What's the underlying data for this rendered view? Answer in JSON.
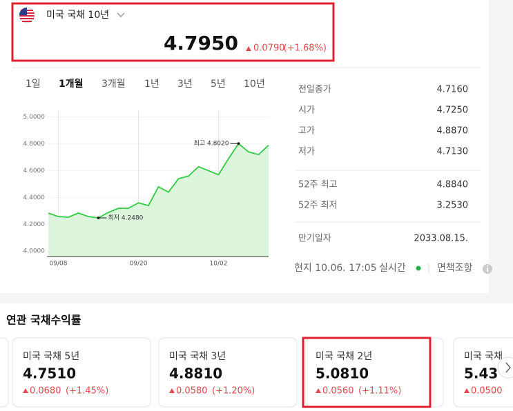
{
  "header": {
    "title": "미국 국채 10년",
    "price": "4.7950",
    "change": "0.0790",
    "change_pct": "(+1.68%)"
  },
  "tabs": [
    {
      "label": "1일",
      "active": false
    },
    {
      "label": "1개월",
      "active": true
    },
    {
      "label": "3개월",
      "active": false
    },
    {
      "label": "1년",
      "active": false
    },
    {
      "label": "3년",
      "active": false
    },
    {
      "label": "5년",
      "active": false
    },
    {
      "label": "10년",
      "active": false
    }
  ],
  "chart_data": {
    "type": "line",
    "categories": [
      null,
      "09/08",
      null,
      null,
      null,
      null,
      null,
      null,
      null,
      "09/20",
      null,
      null,
      null,
      null,
      null,
      null,
      null,
      "10/02",
      null,
      null,
      null,
      null,
      null
    ],
    "values": [
      4.284,
      4.258,
      4.253,
      4.284,
      4.258,
      4.248,
      4.289,
      4.32,
      4.32,
      4.36,
      4.34,
      4.48,
      4.44,
      4.54,
      4.56,
      4.63,
      4.6,
      4.57,
      4.69,
      4.802,
      4.74,
      4.72,
      4.79
    ],
    "color": "#2ecc40",
    "fill": "#dcf5dc",
    "ylim": [
      3.96,
      5.05
    ],
    "yticks": [
      {
        "value": 4.0,
        "label": "4.0000"
      },
      {
        "value": 4.2,
        "label": "4.2000"
      },
      {
        "value": 4.4,
        "label": "4.4000"
      },
      {
        "value": 4.6,
        "label": "4.6000"
      },
      {
        "value": 4.8,
        "label": "4.8000"
      },
      {
        "value": 5.0,
        "label": "5.0000"
      }
    ],
    "annotations": {
      "max": "최고 4.8020",
      "min": "최저 4.2480"
    }
  },
  "stats": [
    {
      "label": "전일종가",
      "value": "4.7160"
    },
    {
      "label": "시가",
      "value": "4.7250"
    },
    {
      "label": "고가",
      "value": "4.8870"
    },
    {
      "label": "저가",
      "value": "4.7130"
    },
    {
      "label": "52주 최고",
      "value": "4.8840"
    },
    {
      "label": "52주 최저",
      "value": "3.2530"
    },
    {
      "label": "만기일자",
      "value": "2033.08.15."
    }
  ],
  "footer": {
    "time": "현지 10.06. 17:05",
    "realtime": "실시간",
    "disclaimer": "면책조항"
  },
  "related": {
    "title": "연관 국채수익률",
    "cards": [
      {
        "name": "미국 국채 5년",
        "price": "4.7510",
        "change": "0.0680",
        "change_pct": "(+1.45%)"
      },
      {
        "name": "미국 국채 3년",
        "price": "4.8810",
        "change": "0.0580",
        "change_pct": "(+1.20%)"
      },
      {
        "name": "미국 국채 2년",
        "price": "5.0810",
        "change": "0.0560",
        "change_pct": "(+1.11%)"
      },
      {
        "name": "미국 국채",
        "price": "5.43",
        "change": "0.0500",
        "change_pct": ""
      }
    ]
  }
}
